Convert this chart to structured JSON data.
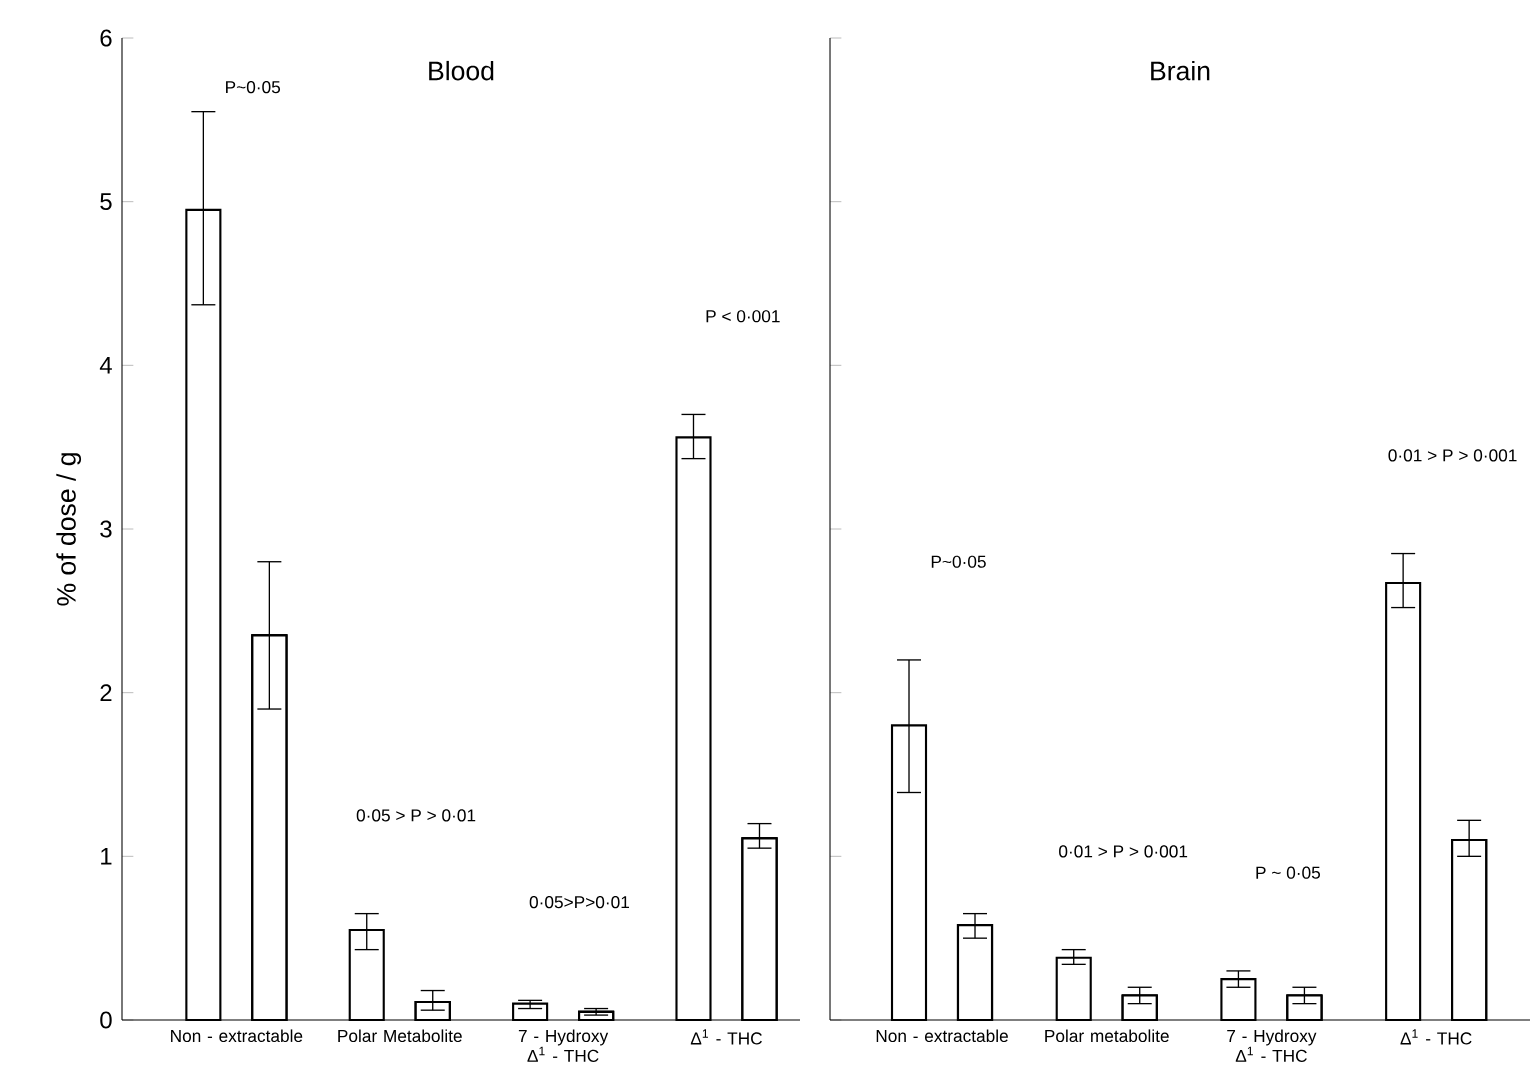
{
  "chart_data": [
    {
      "type": "bar",
      "title": "Blood",
      "ylabel": "% of dose / g",
      "categories": [
        "Non - extractable",
        "Polar Metabolite",
        "7 - Hydroxy Δ$^{1}$ - THC",
        "Δ$^{1}$ - THC"
      ],
      "series": [
        {
          "color": "#000000",
          "values": [
            4.95,
            0.55,
            0.1,
            3.56
          ],
          "errors": [
            [
              4.37,
              5.55
            ],
            [
              0.43,
              0.65
            ],
            [
              0.07,
              0.12
            ],
            [
              3.43,
              3.7
            ]
          ]
        },
        {
          "color": "#000000",
          "values": [
            2.35,
            0.11,
            0.05,
            1.11
          ],
          "errors": [
            [
              1.9,
              2.8
            ],
            [
              0.06,
              0.18
            ],
            [
              0.03,
              0.07
            ],
            [
              1.05,
              1.2
            ]
          ]
        }
      ],
      "ylim": [
        0,
        6
      ],
      "yticks": [
        0,
        1,
        2,
        3,
        4,
        5,
        6
      ],
      "annotations": [
        "P~0·05",
        "0·05 > P > 0·01",
        "0·05>P>0·01",
        "P < 0·001"
      ]
    },
    {
      "type": "bar",
      "title": "Brain",
      "categories": [
        "Non - extractable",
        "Polar metabolite",
        "7 - Hydroxy Δ$^{1}$ - THC",
        "Δ$^{1}$ - THC"
      ],
      "series": [
        {
          "color": "#000000",
          "values": [
            1.8,
            0.38,
            0.25,
            2.67
          ],
          "errors": [
            [
              1.39,
              2.2
            ],
            [
              0.34,
              0.43
            ],
            [
              0.2,
              0.3
            ],
            [
              2.52,
              2.85
            ]
          ]
        },
        {
          "color": "#000000",
          "values": [
            0.58,
            0.15,
            0.15,
            1.1
          ],
          "errors": [
            [
              0.5,
              0.65
            ],
            [
              0.1,
              0.2
            ],
            [
              0.1,
              0.2
            ],
            [
              1.0,
              1.22
            ]
          ]
        }
      ],
      "ylim": [
        0,
        6
      ],
      "yticks": [
        0,
        1,
        2,
        3,
        4,
        5,
        6
      ],
      "tick_labels": "x",
      "annotations": [
        "P~0·05",
        "0·01 > P > 0·001",
        "P ~ 0·05",
        "0·01 > P > 0·001"
      ]
    }
  ]
}
